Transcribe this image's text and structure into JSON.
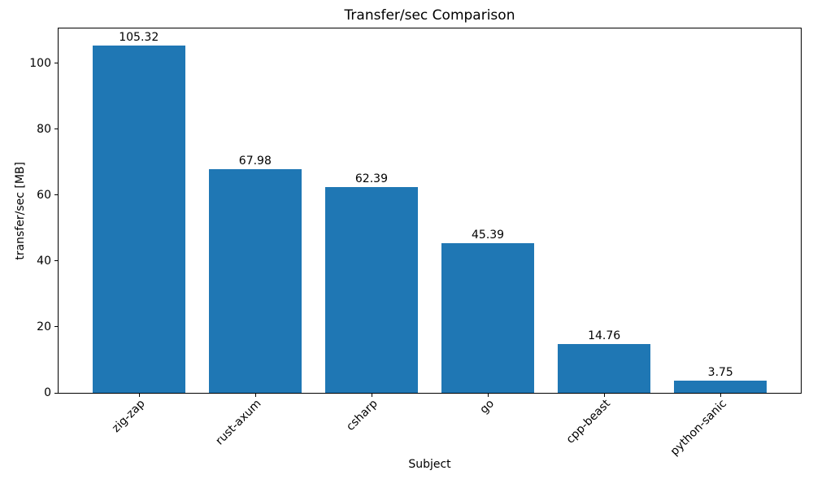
{
  "chart_data": {
    "type": "bar",
    "title": "Transfer/sec Comparison",
    "xlabel": "Subject",
    "ylabel": "transfer/sec [MB]",
    "categories": [
      "zig-zap",
      "rust-axum",
      "csharp",
      "go",
      "cpp-beast",
      "python-sanic"
    ],
    "values": [
      105.32,
      67.98,
      62.39,
      45.39,
      14.76,
      3.75
    ],
    "value_labels": [
      "105.32",
      "67.98",
      "62.39",
      "45.39",
      "14.76",
      "3.75"
    ],
    "yticks": [
      0,
      20,
      40,
      60,
      80,
      100
    ],
    "ylim": [
      0,
      110.59
    ],
    "xlim": [
      -0.69,
      5.69
    ],
    "bar_width": 0.8,
    "bar_color": "#1f77b4",
    "grid": false,
    "legend": "none",
    "x_tick_rotation_deg": 45
  }
}
